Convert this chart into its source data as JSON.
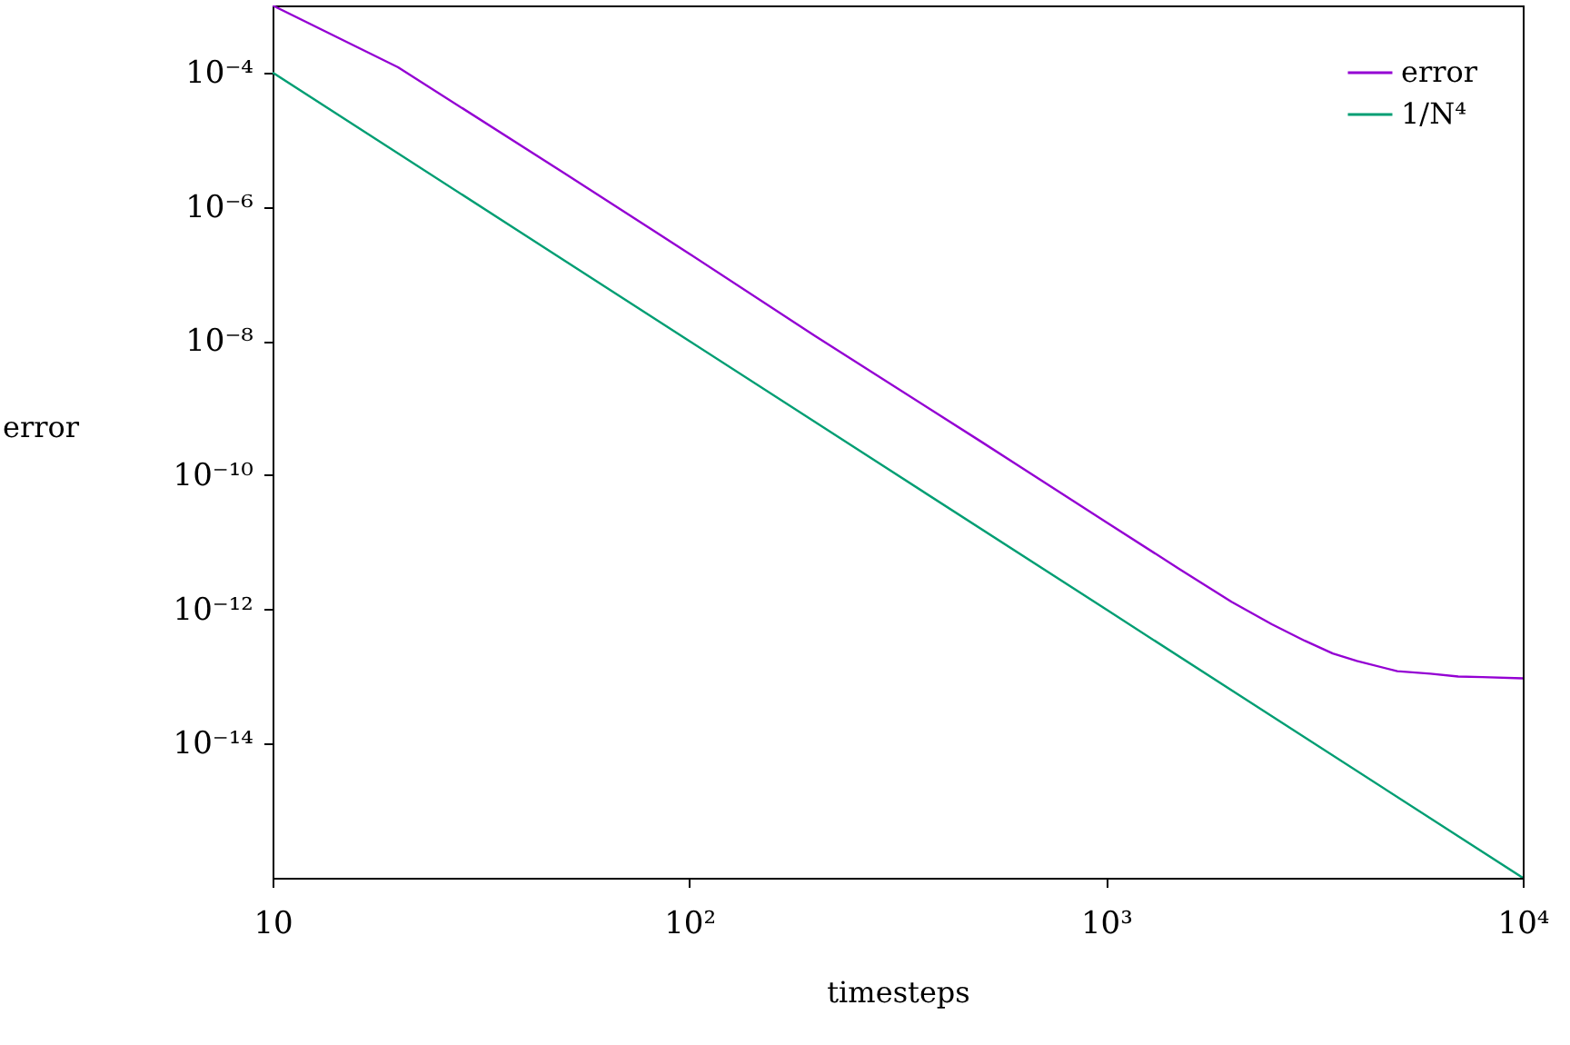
{
  "chart_data": {
    "type": "line",
    "xlabel": "timesteps",
    "ylabel": "error",
    "log": "xy",
    "grid": false,
    "legend": "top right",
    "marker": "none",
    "line_style": "solid",
    "xlim": [
      10,
      10000
    ],
    "xticks": [
      10,
      {
        "value": 100,
        "label": "10²"
      },
      {
        "value": 1000,
        "label": "10³"
      },
      {
        "value": 10000,
        "label": "10⁴"
      }
    ],
    "ylim": [
      1e-16,
      0.001
    ],
    "yticks": [
      {
        "value": 1e-14,
        "label": "10⁻¹⁴"
      },
      {
        "value": 1e-12,
        "label": "10⁻¹²"
      },
      {
        "value": 1e-10,
        "label": "10⁻¹⁰"
      },
      {
        "value": 1e-08,
        "label": "10⁻⁸"
      },
      {
        "value": 1e-06,
        "label": "10⁻⁶"
      },
      {
        "value": 0.0001,
        "label": "10⁻⁴"
      }
    ],
    "series": [
      {
        "name": "error",
        "color": "#9400d3",
        "x": [
          10,
          20,
          50,
          100,
          200,
          500,
          1000,
          1500,
          2000,
          2500,
          3000,
          3500,
          4000,
          5000,
          6000,
          7000,
          8000,
          10000
        ],
        "values": [
          0.001,
          0.00012,
          3.2e-06,
          2e-07,
          1.2e-08,
          3.2e-10,
          2e-11,
          4e-12,
          1.3e-12,
          6e-13,
          3.4e-13,
          2.2e-13,
          1.7e-13,
          1.2e-13,
          1.1e-13,
          1e-13,
          9.8e-14,
          9.4e-14
        ]
      },
      {
        "name": "1/N⁴",
        "color": "#009e73",
        "x": [
          10,
          100,
          1000,
          10000
        ],
        "values": [
          0.0001,
          1e-08,
          1e-12,
          1e-16
        ]
      }
    ]
  }
}
